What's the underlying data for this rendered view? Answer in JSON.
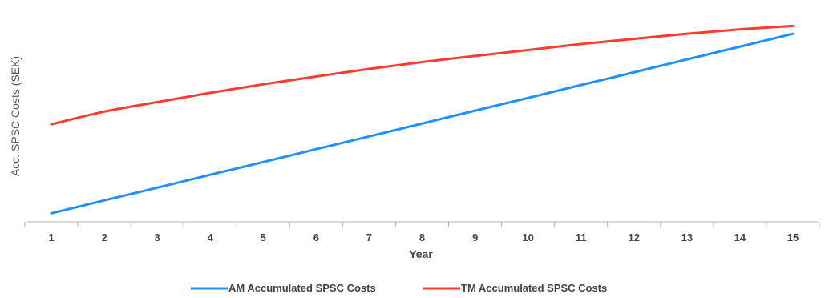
{
  "chart_data": {
    "type": "line",
    "title": "",
    "xlabel": "Year",
    "ylabel": "Acc. SPSC Costs (SEK)",
    "categories": [
      "1",
      "2",
      "3",
      "4",
      "5",
      "6",
      "7",
      "8",
      "9",
      "10",
      "11",
      "12",
      "13",
      "14",
      "15"
    ],
    "y_unit_note": "Y axis has no printed tick labels; values are relative (0–100 of plotted range).",
    "ylim": [
      0,
      100
    ],
    "grid": false,
    "legend_position": "bottom-center",
    "series": [
      {
        "name": "AM Accumulated SPSC Costs",
        "color": "#1e90ff",
        "values": [
          4.5,
          11.3,
          18.0,
          24.8,
          31.5,
          38.3,
          45.0,
          51.8,
          58.6,
          65.3,
          72.1,
          78.8,
          85.6,
          92.3,
          99.1
        ]
      },
      {
        "name": "TM Accumulated SPSC Costs",
        "color": "#ff3b30",
        "values": [
          51.4,
          58.1,
          63.1,
          68.0,
          72.5,
          76.6,
          80.6,
          84.2,
          87.4,
          90.5,
          93.7,
          96.4,
          99.1,
          101.4,
          103.2
        ]
      }
    ]
  }
}
